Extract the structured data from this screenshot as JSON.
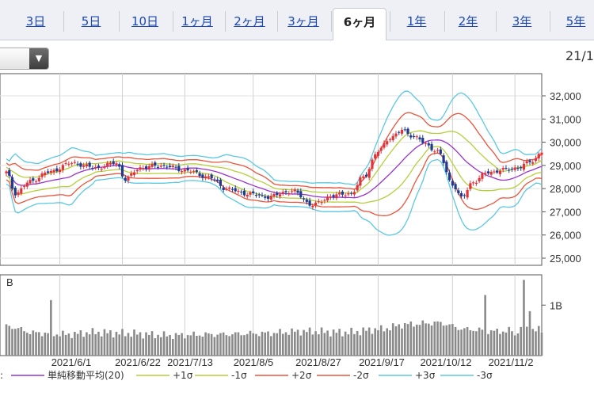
{
  "tabs": [
    {
      "label": "3日",
      "active": false
    },
    {
      "label": "5日",
      "active": false
    },
    {
      "label": "10日",
      "active": false
    },
    {
      "label": "1ヶ月",
      "active": false
    },
    {
      "label": "2ヶ月",
      "active": false
    },
    {
      "label": "3ヶ月",
      "active": false
    },
    {
      "label": "6ヶ月",
      "active": true
    },
    {
      "label": "1年",
      "active": false
    },
    {
      "label": "2年",
      "active": false
    },
    {
      "label": "3年",
      "active": false
    },
    {
      "label": "5年",
      "active": false
    }
  ],
  "header_date": "21/1",
  "colors": {
    "sma": "#9933cc",
    "sigma1": "#b5cf3a",
    "sigma2": "#e8553c",
    "sigma3": "#5bc8e0",
    "up": "#e0343a",
    "down": "#1f3a8f",
    "volume": "#8a8a8a"
  },
  "chart_data": {
    "type": "candlestick",
    "price_axis": {
      "min": 25000,
      "max": 32000,
      "ticks": [
        "25,000",
        "26,000",
        "27,000",
        "28,000",
        "29,000",
        "30,000",
        "31,000",
        "32,000"
      ]
    },
    "x_tick_labels": [
      "2021/6/1",
      "2021/6/22",
      "2021/7/13",
      "2021/8/5",
      "2021/8/27",
      "2021/9/17",
      "2021/10/12",
      "2021/11/2"
    ],
    "volume_axis": {
      "unit_label": "B",
      "tick_label": "1B",
      "tick_value": 1.0,
      "max": 1.6
    },
    "legend": [
      {
        "label": "単純移動平均(20)",
        "color_key": "sma"
      },
      {
        "label": "+1σ",
        "color_key": "sigma1"
      },
      {
        "label": "-1σ",
        "color_key": "sigma1"
      },
      {
        "label": "+2σ",
        "color_key": "sigma2"
      },
      {
        "label": "-2σ",
        "color_key": "sigma2"
      },
      {
        "label": "+3σ",
        "color_key": "sigma3"
      },
      {
        "label": "-3σ",
        "color_key": "sigma3"
      }
    ],
    "close_keypoints": [
      [
        0,
        28700
      ],
      [
        3,
        27800
      ],
      [
        8,
        28300
      ],
      [
        14,
        28700
      ],
      [
        22,
        29100
      ],
      [
        30,
        28900
      ],
      [
        37,
        29100
      ],
      [
        40,
        28400
      ],
      [
        45,
        28900
      ],
      [
        52,
        29000
      ],
      [
        60,
        28800
      ],
      [
        68,
        28500
      ],
      [
        74,
        28000
      ],
      [
        80,
        27800
      ],
      [
        88,
        27650
      ],
      [
        96,
        27900
      ],
      [
        103,
        27300
      ],
      [
        110,
        27700
      ],
      [
        116,
        27800
      ],
      [
        120,
        28500
      ],
      [
        125,
        29600
      ],
      [
        129,
        30200
      ],
      [
        133,
        30500
      ],
      [
        138,
        30200
      ],
      [
        141,
        29900
      ],
      [
        145,
        29600
      ],
      [
        150,
        28200
      ],
      [
        153,
        27600
      ],
      [
        157,
        28300
      ],
      [
        162,
        28700
      ],
      [
        167,
        28800
      ],
      [
        172,
        28900
      ],
      [
        177,
        29200
      ],
      [
        180,
        29600
      ]
    ],
    "volume_keypoints": [
      [
        0,
        0.58
      ],
      [
        10,
        0.45
      ],
      [
        20,
        0.42
      ],
      [
        30,
        0.46
      ],
      [
        40,
        0.44
      ],
      [
        55,
        0.4
      ],
      [
        70,
        0.42
      ],
      [
        85,
        0.44
      ],
      [
        100,
        0.48
      ],
      [
        115,
        0.46
      ],
      [
        125,
        0.52
      ],
      [
        135,
        0.62
      ],
      [
        145,
        0.65
      ],
      [
        155,
        0.52
      ],
      [
        165,
        0.48
      ],
      [
        175,
        0.52
      ],
      [
        180,
        0.5
      ]
    ],
    "volume_spikes": [
      [
        15,
        1.1
      ],
      [
        161,
        1.2
      ],
      [
        174,
        1.5
      ],
      [
        176,
        0.88
      ],
      [
        171,
        0.4
      ]
    ],
    "volume_notes": "daily bars; values in billions (B)"
  }
}
